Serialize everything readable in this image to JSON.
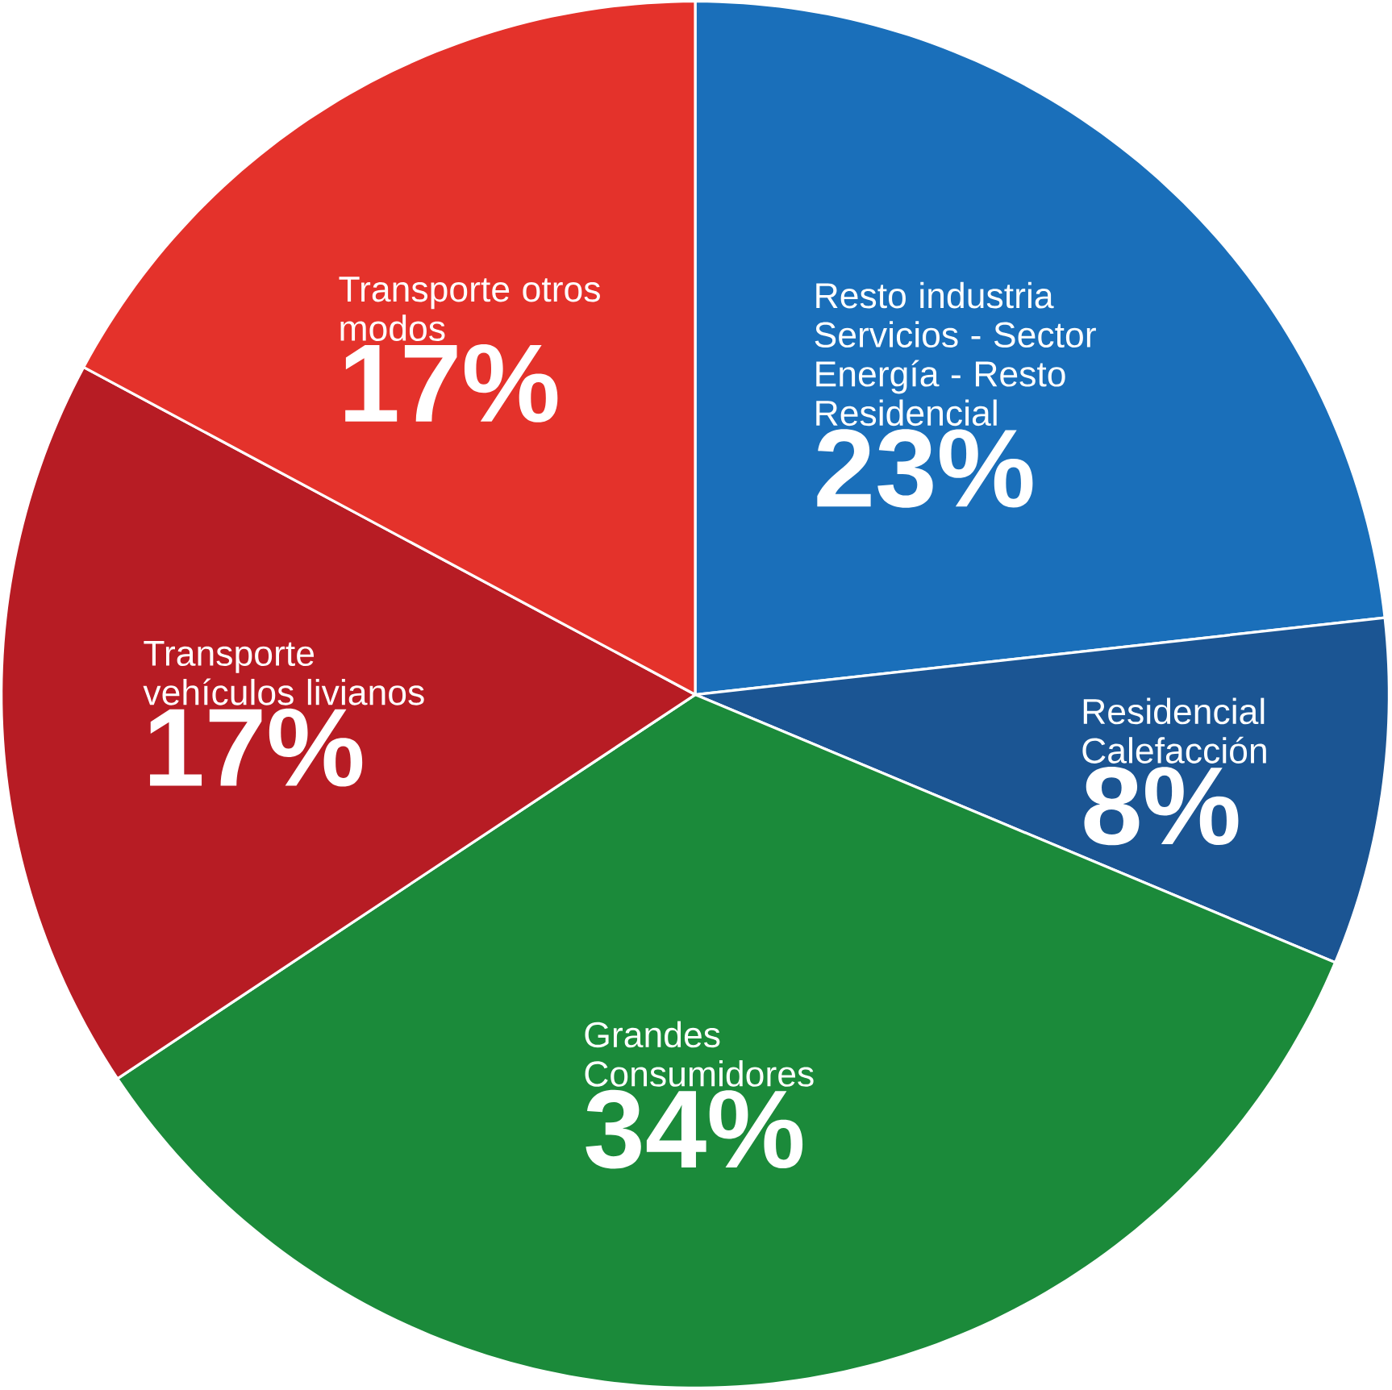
{
  "chart_data": {
    "type": "pie",
    "categories": [
      "Resto industria Servicios - Sector Energía - Resto Residencial",
      "Residencial Calefacción",
      "Grandes Consumidores",
      "Transporte vehículos livianos",
      "Transporte otros modos"
    ],
    "values": [
      23,
      8,
      34,
      17,
      17
    ],
    "colors": [
      "#1a6fba",
      "#1b5593",
      "#1b8a3a",
      "#b71c24",
      "#e4322b"
    ],
    "value_labels": [
      "23%",
      "8%",
      "34%",
      "17%",
      "17%"
    ]
  }
}
